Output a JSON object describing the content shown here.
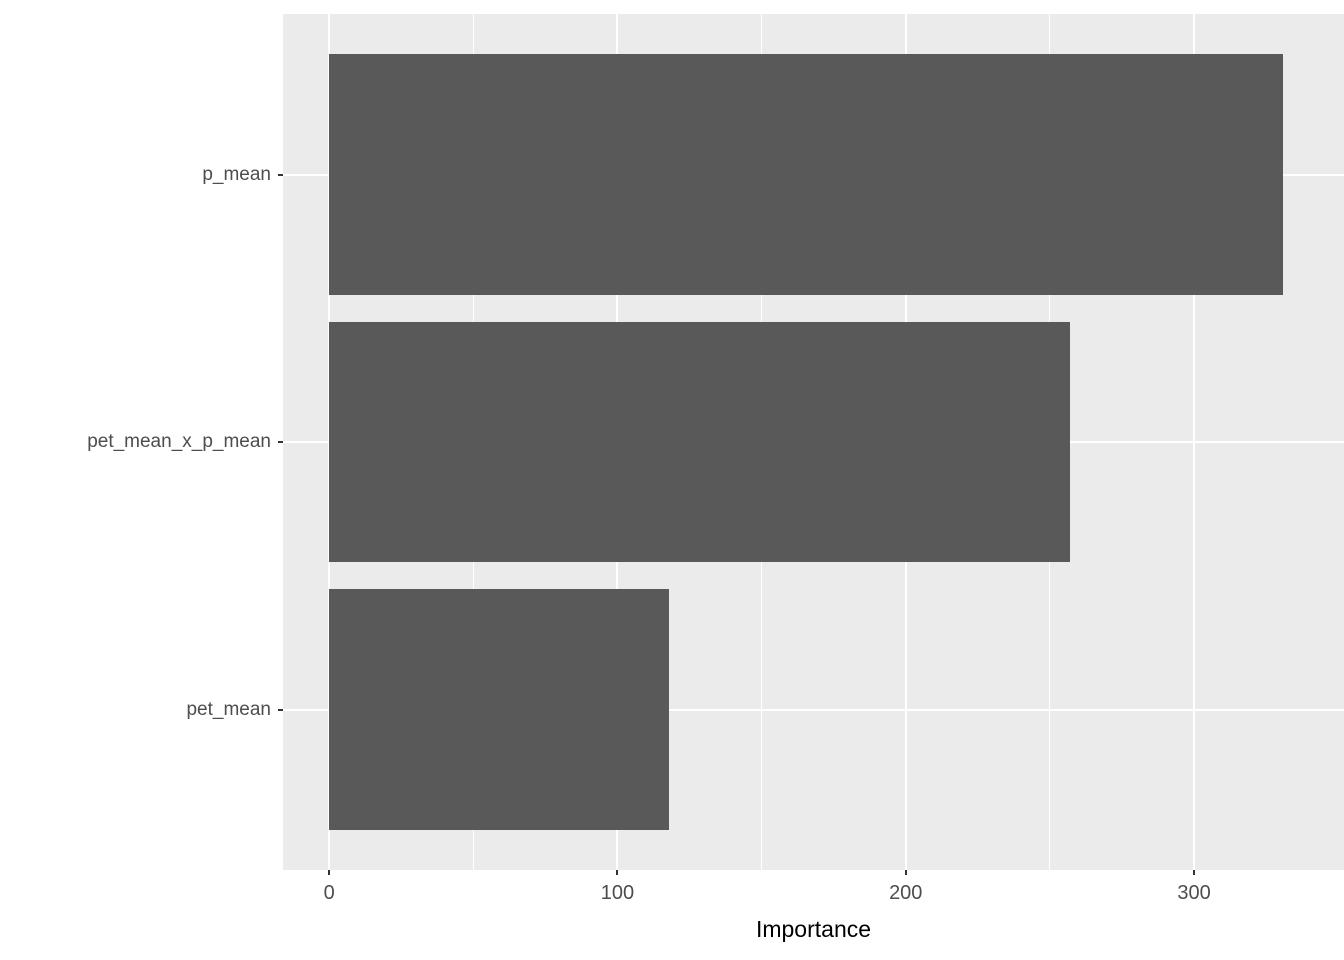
{
  "chart_data": {
    "type": "bar",
    "orientation": "horizontal",
    "title": "",
    "xlabel": "Importance",
    "ylabel": "",
    "categories": [
      "p_mean",
      "pet_mean_x_p_mean",
      "pet_mean"
    ],
    "values": [
      331,
      257,
      118
    ],
    "x_ticks": [
      0,
      100,
      200,
      300
    ],
    "x_minor_ticks": [
      50,
      150,
      250
    ],
    "xlim": [
      -16,
      352
    ],
    "grid": true,
    "legend": "none",
    "colors": {
      "bar_fill": "#595959",
      "panel_background": "#EBEBEB",
      "grid_major": "#FFFFFF",
      "grid_minor": "#FFFFFF",
      "tick_mark": "#333333",
      "tick_label": "#4D4D4D",
      "axis_title": "#000000",
      "figure_background": "#FFFFFF"
    }
  }
}
